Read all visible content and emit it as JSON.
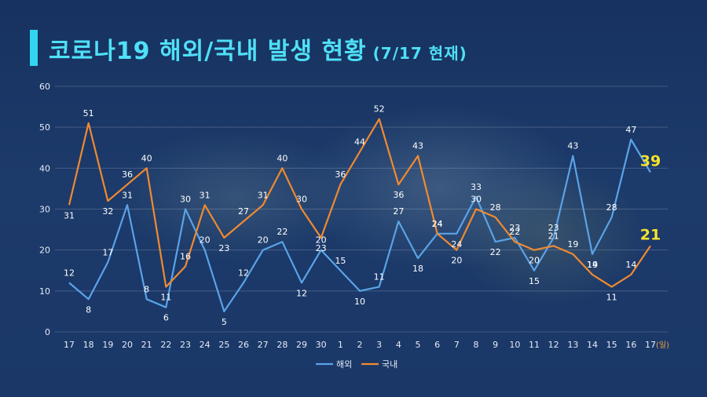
{
  "title": {
    "main": "코로나19 해외/국내 발생 현황",
    "sub": "(7/17 현재)"
  },
  "colors": {
    "overseas": "#5aa3e8",
    "domestic": "#f08a30",
    "highlight": "#f6e32c"
  },
  "chart_data": {
    "type": "line",
    "x_unit": "(일)",
    "ylim": [
      0,
      60
    ],
    "yticks": [
      0,
      10,
      20,
      30,
      40,
      50,
      60
    ],
    "grid": true,
    "legend_position": "bottom-center",
    "categories": [
      "17",
      "18",
      "19",
      "20",
      "21",
      "22",
      "23",
      "24",
      "25",
      "26",
      "27",
      "28",
      "29",
      "30",
      "1",
      "2",
      "3",
      "4",
      "5",
      "6",
      "7",
      "8",
      "9",
      "10",
      "11",
      "12",
      "13",
      "14",
      "15",
      "16",
      "17"
    ],
    "series": [
      {
        "name": "해외",
        "values": [
          12,
          8,
          17,
          31,
          8,
          6,
          30,
          20,
          5,
          12,
          20,
          22,
          12,
          20,
          15,
          10,
          11,
          27,
          18,
          24,
          24,
          33,
          22,
          23,
          15,
          23,
          43,
          19,
          28,
          47,
          39
        ]
      },
      {
        "name": "국내",
        "values": [
          31,
          51,
          32,
          36,
          40,
          11,
          16,
          31,
          23,
          27,
          31,
          40,
          30,
          23,
          36,
          44,
          52,
          36,
          43,
          24,
          20,
          30,
          28,
          22,
          20,
          21,
          19,
          14,
          11,
          14,
          21
        ]
      }
    ]
  }
}
